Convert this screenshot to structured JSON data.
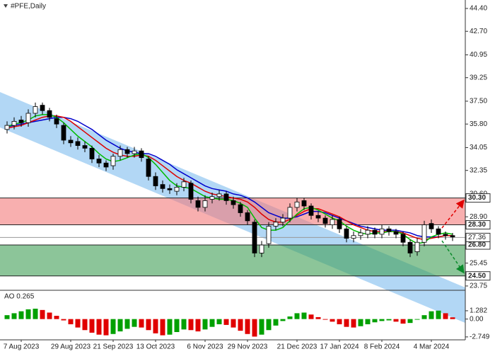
{
  "chart_data": [
    {
      "type": "candlestick",
      "title": "#PFE,Daily",
      "categories": [
        null,
        null,
        "7 Aug 2023",
        null,
        null,
        null,
        null,
        null,
        null,
        "29 Aug 2023",
        null,
        null,
        null,
        null,
        null,
        "21 Sep 2023",
        null,
        null,
        null,
        null,
        null,
        "13 Oct 2023",
        null,
        null,
        null,
        null,
        null,
        null,
        "6 Nov 2023",
        null,
        null,
        null,
        null,
        null,
        "29 Nov 2023",
        null,
        null,
        null,
        null,
        null,
        null,
        "21 Dec 2023",
        null,
        null,
        null,
        null,
        null,
        "17 Jan 2024",
        null,
        null,
        null,
        null,
        null,
        "8 Feb 2024",
        null,
        null,
        null,
        null,
        null,
        null,
        "4 Mar 2024",
        null,
        null,
        null
      ],
      "open": [
        35.4,
        35.7,
        36.1,
        35.9,
        36.6,
        37.2,
        36.8,
        36.2,
        35.7,
        34.6,
        34.5,
        34.2,
        34.0,
        33.2,
        32.9,
        32.7,
        33.4,
        33.9,
        33.6,
        33.8,
        33.2,
        31.9,
        31.3,
        31.0,
        30.8,
        31.1,
        31.4,
        30.1,
        29.6,
        30.2,
        30.4,
        30.6,
        30.1,
        29.8,
        29.2,
        28.5,
        26.2,
        26.9,
        28.2,
        28.5,
        28.8,
        29.6,
        30.1,
        29.7,
        29.0,
        28.8,
        28.3,
        28.7,
        28.0,
        27.3,
        27.5,
        27.6,
        27.9,
        27.6,
        28.0,
        27.8,
        27.6,
        27.0,
        26.3,
        27.0,
        28.4,
        28.0,
        27.6,
        27.5
      ],
      "high": [
        36.0,
        36.3,
        36.4,
        36.9,
        37.4,
        37.4,
        37.0,
        36.5,
        35.9,
        34.9,
        34.8,
        34.5,
        34.2,
        33.5,
        33.1,
        33.6,
        34.2,
        34.1,
        34.1,
        34.0,
        33.4,
        32.2,
        31.6,
        31.3,
        31.4,
        31.8,
        31.6,
        30.4,
        30.5,
        30.7,
        30.9,
        30.8,
        30.4,
        30.0,
        29.4,
        28.7,
        27.1,
        28.5,
        28.8,
        29.1,
        29.9,
        30.3,
        30.3,
        29.9,
        29.3,
        29.0,
        29.0,
        28.9,
        28.2,
        27.8,
        28.0,
        28.2,
        28.1,
        28.3,
        28.2,
        28.0,
        27.8,
        27.2,
        27.3,
        28.6,
        28.7,
        28.2,
        27.8,
        27.7
      ],
      "low": [
        35.1,
        35.4,
        35.6,
        35.6,
        36.3,
        36.5,
        36.0,
        35.5,
        34.3,
        34.1,
        33.9,
        33.7,
        32.9,
        32.6,
        32.3,
        32.4,
        33.1,
        33.3,
        33.3,
        33.0,
        31.6,
        30.9,
        30.7,
        30.6,
        30.5,
        30.8,
        29.9,
        29.3,
        29.3,
        29.9,
        30.1,
        29.8,
        29.5,
        28.9,
        28.3,
        25.9,
        25.9,
        26.6,
        27.9,
        28.2,
        28.5,
        29.3,
        29.4,
        28.7,
        28.5,
        28.1,
        28.0,
        27.7,
        27.0,
        27.0,
        27.2,
        27.3,
        27.3,
        27.3,
        27.5,
        27.3,
        26.7,
        25.9,
        26.0,
        26.7,
        27.7,
        27.3,
        27.2,
        27.1
      ],
      "close": [
        35.7,
        36.0,
        35.9,
        36.6,
        37.1,
        36.8,
        36.3,
        35.8,
        34.6,
        34.4,
        34.2,
        34.0,
        33.2,
        32.9,
        32.6,
        33.4,
        33.9,
        33.6,
        33.8,
        33.3,
        31.9,
        31.2,
        31.0,
        30.9,
        31.1,
        31.5,
        30.2,
        29.6,
        30.1,
        30.4,
        30.6,
        30.1,
        29.8,
        29.2,
        28.6,
        26.2,
        26.8,
        28.2,
        28.5,
        28.8,
        29.6,
        30.0,
        29.7,
        29.0,
        28.8,
        28.4,
        28.7,
        28.0,
        27.3,
        27.5,
        27.7,
        27.9,
        27.6,
        28.0,
        27.8,
        27.6,
        27.0,
        26.2,
        27.0,
        28.3,
        28.0,
        27.6,
        27.5,
        27.4
      ],
      "up_color": "#ffffff",
      "down_color": "#000000",
      "series": [
        {
          "color": "#0000cc",
          "values": [
            35.6,
            35.7,
            35.8,
            35.9,
            36.0,
            36.1,
            36.2,
            36.3,
            36.3,
            36.2,
            36.0,
            35.7,
            35.4,
            35.0,
            34.6,
            34.3,
            34.0,
            33.8,
            33.7,
            33.6,
            33.6,
            33.4,
            33.1,
            32.8,
            32.4,
            32.1,
            31.8,
            31.5,
            31.2,
            31.0,
            30.9,
            30.8,
            30.6,
            30.5,
            30.3,
            30.0,
            29.6,
            29.2,
            29.0,
            28.8,
            28.8,
            28.9,
            29.1,
            29.3,
            29.3,
            29.2,
            29.0,
            28.8,
            28.6,
            28.4,
            28.2,
            28.1,
            28.0,
            27.9,
            27.9,
            27.9,
            27.8,
            27.7,
            27.5,
            27.4,
            27.4,
            27.4,
            27.5,
            27.5
          ]
        },
        {
          "color": "#dd0000",
          "values": [
            35.5,
            35.6,
            35.7,
            35.9,
            36.1,
            36.3,
            36.4,
            36.4,
            36.3,
            36.0,
            35.6,
            35.2,
            34.8,
            34.4,
            34.0,
            33.7,
            33.5,
            33.4,
            33.4,
            33.5,
            33.4,
            33.1,
            32.7,
            32.3,
            31.9,
            31.6,
            31.4,
            31.1,
            30.8,
            30.6,
            30.5,
            30.4,
            30.3,
            30.2,
            30.0,
            29.6,
            29.1,
            28.7,
            28.5,
            28.5,
            28.7,
            29.0,
            29.3,
            29.5,
            29.5,
            29.3,
            29.1,
            28.9,
            28.6,
            28.3,
            28.1,
            27.9,
            27.8,
            27.8,
            27.8,
            27.8,
            27.7,
            27.5,
            27.3,
            27.2,
            27.3,
            27.4,
            27.5,
            27.5
          ]
        },
        {
          "color": "#00bb00",
          "values": [
            35.6,
            35.8,
            35.9,
            36.1,
            36.4,
            36.5,
            36.5,
            36.3,
            35.9,
            35.4,
            34.9,
            34.5,
            34.1,
            33.6,
            33.2,
            33.0,
            33.1,
            33.3,
            33.5,
            33.6,
            33.3,
            32.8,
            32.2,
            31.6,
            31.2,
            31.1,
            31.0,
            30.7,
            30.4,
            30.3,
            30.2,
            30.2,
            30.1,
            29.9,
            29.6,
            28.8,
            28.1,
            27.9,
            27.9,
            28.1,
            28.6,
            29.1,
            29.5,
            29.6,
            29.4,
            29.1,
            28.8,
            28.6,
            28.2,
            27.9,
            27.7,
            27.6,
            27.7,
            27.7,
            27.8,
            27.8,
            27.6,
            27.2,
            26.9,
            27.0,
            27.4,
            27.6,
            27.7,
            27.6
          ]
        }
      ],
      "zones": [
        {
          "top": {
            "value": 30.3,
            "label": "30.30"
          },
          "bottom": {
            "value": 28.3,
            "label": "28.30"
          },
          "color": "#f47a7a"
        },
        {
          "top": {
            "value": 26.8,
            "label": "26.80"
          },
          "bottom": {
            "value": 24.5,
            "label": "24.50"
          },
          "color": "#3f9f55"
        }
      ],
      "last_price": {
        "value": 27.36,
        "label": "27.36"
      },
      "ylim": [
        23.43,
        45.03
      ],
      "yticks": [
        {
          "value": 44.4,
          "label": "44.40"
        },
        {
          "value": 42.7,
          "label": "42.70"
        },
        40.95,
        39.25,
        {
          "value": 37.5,
          "label": "37.50"
        },
        {
          "value": 35.8,
          "label": "35.80"
        },
        34.05,
        32.35,
        {
          "value": 30.6,
          "label": "30.60"
        },
        {
          "value": 28.9,
          "label": "28.90"
        },
        25.45,
        23.75
      ]
    },
    {
      "type": "bar",
      "title": "AO 0.265",
      "values": [
        0.6,
        0.9,
        1.2,
        1.5,
        1.6,
        1.4,
        1.0,
        0.5,
        -0.2,
        -0.8,
        -1.3,
        -1.7,
        -2.1,
        -2.4,
        -2.5,
        -2.3,
        -1.9,
        -1.5,
        -1.2,
        -1.3,
        -1.7,
        -2.2,
        -2.5,
        -2.4,
        -2.0,
        -1.6,
        -1.7,
        -1.9,
        -1.6,
        -1.2,
        -0.8,
        -0.9,
        -1.3,
        -1.8,
        -2.3,
        -2.7,
        -2.4,
        -1.7,
        -1.0,
        -0.3,
        0.4,
        0.9,
        1.0,
        0.7,
        0.3,
        -0.1,
        -0.4,
        -0.8,
        -1.2,
        -1.3,
        -1.1,
        -0.8,
        -0.5,
        -0.3,
        -0.2,
        -0.4,
        -0.7,
        -0.6,
        -0.1,
        0.6,
        1.2,
        1.3,
        0.9,
        0.265
      ],
      "up_color": "#00a000",
      "down_color": "#e00000",
      "ylim": [
        -3.2,
        4.0
      ],
      "yticks": [
        1.282,
        {
          "value": 0,
          "label": "0.00"
        },
        -2.749
      ]
    }
  ]
}
